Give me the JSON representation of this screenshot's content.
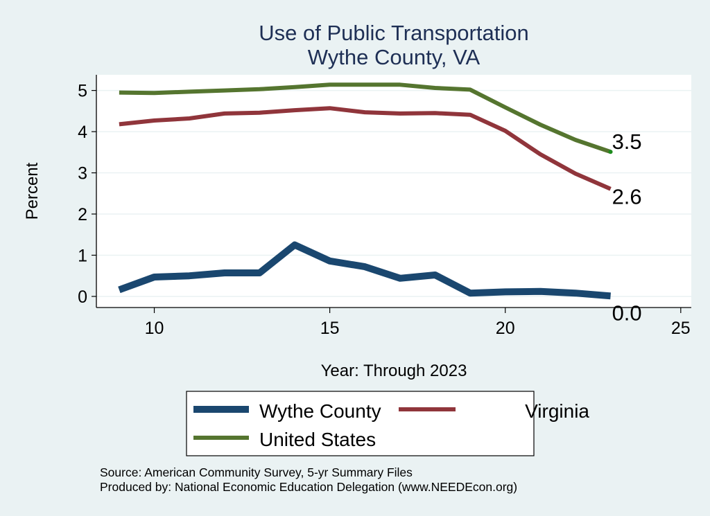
{
  "chart_data": {
    "type": "line",
    "title": "Use of Public Transportation",
    "subtitle": "Wythe County, VA",
    "xlabel": "Year: Through 2023",
    "ylabel": "Percent",
    "xlim": [
      8.35,
      25.3
    ],
    "ylim": [
      -0.27,
      5.38
    ],
    "xticks": [
      10,
      15,
      20,
      25
    ],
    "yticks": [
      0,
      1,
      2,
      3,
      4,
      5
    ],
    "grid": true,
    "x": [
      9,
      10,
      11,
      12,
      13,
      14,
      15,
      16,
      17,
      18,
      19,
      20,
      21,
      22,
      23
    ],
    "series": [
      {
        "name": "Wythe County",
        "color": "#1A476F",
        "values": [
          0.16,
          0.47,
          0.5,
          0.57,
          0.57,
          1.25,
          0.86,
          0.72,
          0.44,
          0.52,
          0.08,
          0.11,
          0.12,
          0.08,
          0.01
        ],
        "end_label": "0.0"
      },
      {
        "name": "Virginia",
        "color": "#90353B",
        "values": [
          4.18,
          4.27,
          4.32,
          4.44,
          4.46,
          4.52,
          4.57,
          4.47,
          4.44,
          4.45,
          4.41,
          4.02,
          3.45,
          2.98,
          2.61
        ],
        "end_label": "2.6"
      },
      {
        "name": "United States",
        "color": "#55752F",
        "values": [
          4.95,
          4.94,
          4.97,
          5.0,
          5.03,
          5.08,
          5.14,
          5.14,
          5.14,
          5.06,
          5.02,
          4.59,
          4.17,
          3.8,
          3.51
        ],
        "end_label": "3.5"
      }
    ],
    "legend": {
      "placement": "bottom",
      "entries": [
        "Wythe County",
        "Virginia",
        "United States"
      ]
    },
    "notes": [
      "Source: American Community Survey, 5-yr Summary Files",
      "Produced by: National Economic Education Delegation (www.NEEDEcon.org)"
    ]
  }
}
